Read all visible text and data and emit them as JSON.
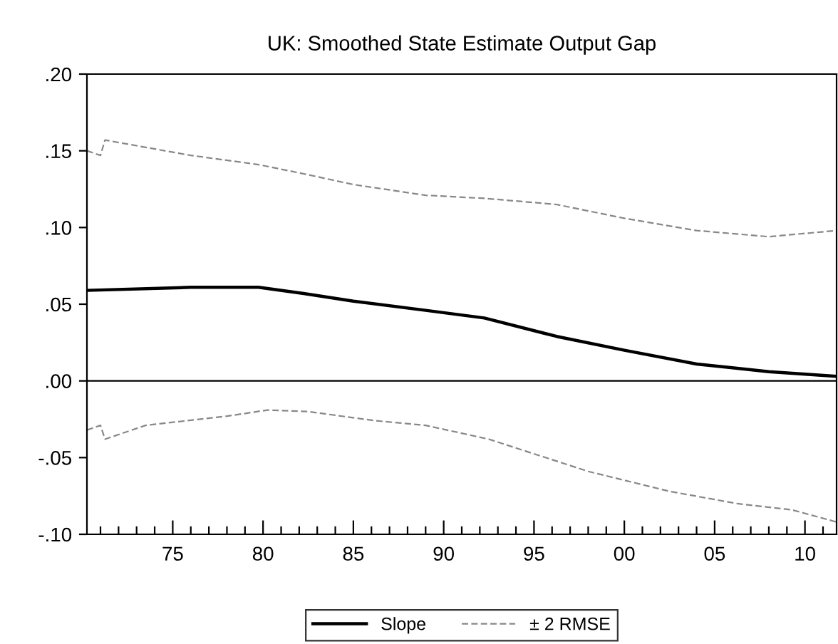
{
  "chart_data": {
    "type": "line",
    "title": "UK: Smoothed State Estimate Output Gap",
    "xlim": [
      1970.25,
      2011.75
    ],
    "xticks": [
      {
        "value": 1971,
        "label": null
      },
      {
        "value": 1972,
        "label": null
      },
      {
        "value": 1973,
        "label": null
      },
      {
        "value": 1974,
        "label": null
      },
      {
        "value": 1975,
        "label": "75"
      },
      {
        "value": 1976,
        "label": null
      },
      {
        "value": 1977,
        "label": null
      },
      {
        "value": 1978,
        "label": null
      },
      {
        "value": 1979,
        "label": null
      },
      {
        "value": 1980,
        "label": "80"
      },
      {
        "value": 1981,
        "label": null
      },
      {
        "value": 1982,
        "label": null
      },
      {
        "value": 1983,
        "label": null
      },
      {
        "value": 1984,
        "label": null
      },
      {
        "value": 1985,
        "label": "85"
      },
      {
        "value": 1986,
        "label": null
      },
      {
        "value": 1987,
        "label": null
      },
      {
        "value": 1988,
        "label": null
      },
      {
        "value": 1989,
        "label": null
      },
      {
        "value": 1990,
        "label": "90"
      },
      {
        "value": 1991,
        "label": null
      },
      {
        "value": 1992,
        "label": null
      },
      {
        "value": 1993,
        "label": null
      },
      {
        "value": 1994,
        "label": null
      },
      {
        "value": 1995,
        "label": "95"
      },
      {
        "value": 1996,
        "label": null
      },
      {
        "value": 1997,
        "label": null
      },
      {
        "value": 1998,
        "label": null
      },
      {
        "value": 1999,
        "label": null
      },
      {
        "value": 2000,
        "label": "00"
      },
      {
        "value": 2001,
        "label": null
      },
      {
        "value": 2002,
        "label": null
      },
      {
        "value": 2003,
        "label": null
      },
      {
        "value": 2004,
        "label": null
      },
      {
        "value": 2005,
        "label": "05"
      },
      {
        "value": 2006,
        "label": null
      },
      {
        "value": 2007,
        "label": null
      },
      {
        "value": 2008,
        "label": null
      },
      {
        "value": 2009,
        "label": null
      },
      {
        "value": 2010,
        "label": "10"
      },
      {
        "value": 2011,
        "label": null
      }
    ],
    "ylim": [
      -0.1,
      0.2
    ],
    "yticks": [
      {
        "value": -0.1,
        "label": "-.10"
      },
      {
        "value": -0.05,
        "label": "-.05"
      },
      {
        "value": 0,
        "label": ".00"
      },
      {
        "value": 0.05,
        "label": ".05"
      },
      {
        "value": 0.1,
        "label": ".10"
      },
      {
        "value": 0.15,
        "label": ".15"
      },
      {
        "value": 0.2,
        "label": ".20"
      }
    ],
    "grid": false,
    "legend": "bottom",
    "marker": "none",
    "ref_lines": [
      {
        "axis": "y",
        "value": 0,
        "color": "#000000",
        "line_style": "solid"
      }
    ],
    "series": [
      {
        "name": "Slope",
        "color": "#000000",
        "line_style": "solid",
        "x": [
          1970.25,
          1976,
          1979.75,
          1982.25,
          1985,
          1989,
          1992.25,
          1996.25,
          2000,
          2004,
          2008,
          2011.75
        ],
        "values": [
          0.059,
          0.061,
          0.061,
          0.057,
          0.052,
          0.046,
          0.041,
          0.029,
          0.02,
          0.011,
          0.006,
          0.003
        ]
      },
      {
        "name": "± 2 RMSE",
        "color": "#888888",
        "line_style": "dashed",
        "x": [
          1970.25,
          1971,
          1971.25,
          1976,
          1979.75,
          1982.25,
          1985,
          1989,
          1992.25,
          1996.25,
          2000,
          2004,
          2008,
          2011.75
        ],
        "values": [
          0.15,
          0.147,
          0.157,
          0.147,
          0.141,
          0.135,
          0.128,
          0.121,
          0.119,
          0.115,
          0.106,
          0.098,
          0.094,
          0.098
        ]
      },
      {
        "color": "#888888",
        "line_style": "dashed",
        "x": [
          1970.25,
          1971,
          1971.25,
          1973.5,
          1978,
          1980.25,
          1982.5,
          1986.25,
          1989,
          1992.5,
          1998,
          2002.5,
          2006.25,
          2009.25,
          2011.75
        ],
        "values": [
          -0.032,
          -0.029,
          -0.038,
          -0.029,
          -0.023,
          -0.019,
          -0.02,
          -0.026,
          -0.029,
          -0.038,
          -0.059,
          -0.072,
          -0.08,
          -0.084,
          -0.092
        ]
      }
    ]
  }
}
